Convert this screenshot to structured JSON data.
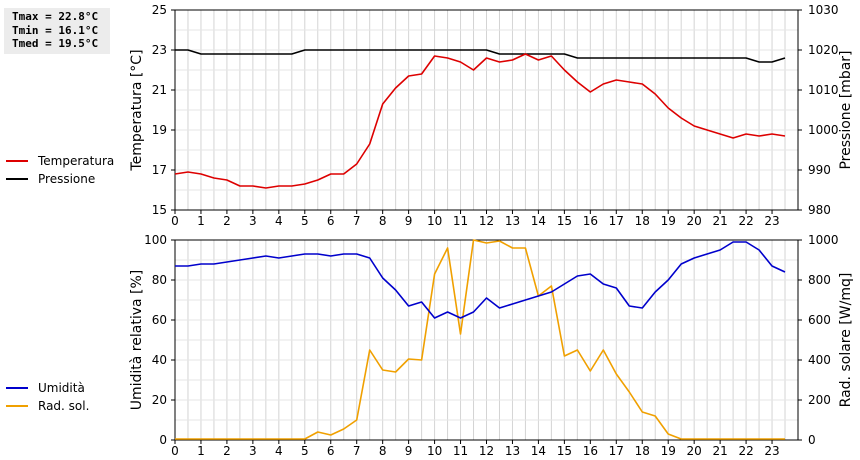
{
  "stats": {
    "tmax": "Tmax = 22.8°C",
    "tmin": "Tmin = 16.1°C",
    "tmed": "Tmed = 19.5°C"
  },
  "legend_top": [
    {
      "label": "Temperatura",
      "color": "#dd0000"
    },
    {
      "label": "Pressione",
      "color": "#000000"
    }
  ],
  "legend_bottom": [
    {
      "label": "Umidità",
      "color": "#0000cc"
    },
    {
      "label": "Rad. sol.",
      "color": "#f0a000"
    }
  ],
  "chart_data": [
    {
      "type": "line",
      "x_ticks": [
        "0",
        "1",
        "2",
        "3",
        "4",
        "5",
        "6",
        "7",
        "8",
        "9",
        "10",
        "11",
        "12",
        "13",
        "14",
        "15",
        "16",
        "17",
        "18",
        "19",
        "20",
        "21",
        "22",
        "23"
      ],
      "xlim": [
        0,
        24
      ],
      "ylabel": "Temperatura [°C]",
      "ylim": [
        15,
        25
      ],
      "y_ticks": [
        15,
        17,
        19,
        21,
        23,
        25
      ],
      "y2label": "Pressione [mbar]",
      "y2lim": [
        980,
        1030
      ],
      "y2_ticks": [
        980,
        990,
        1000,
        1010,
        1020,
        1030
      ],
      "grid": true,
      "series": [
        {
          "name": "Temperatura",
          "color": "#dd0000",
          "axis": "left",
          "x": [
            0,
            0.5,
            1,
            1.5,
            2,
            2.5,
            3,
            3.5,
            4,
            4.5,
            5,
            5.5,
            6,
            6.5,
            7,
            7.5,
            8,
            8.5,
            9,
            9.5,
            10,
            10.5,
            11,
            11.5,
            12,
            12.5,
            13,
            13.5,
            14,
            14.5,
            15,
            15.5,
            16,
            16.5,
            17,
            17.5,
            18,
            18.5,
            19,
            19.5,
            20,
            20.5,
            21,
            21.5,
            22,
            22.5,
            23,
            23.5
          ],
          "values": [
            16.8,
            16.9,
            16.8,
            16.6,
            16.5,
            16.2,
            16.2,
            16.1,
            16.2,
            16.2,
            16.3,
            16.5,
            16.8,
            16.8,
            17.3,
            18.3,
            20.3,
            21.1,
            21.7,
            21.8,
            22.7,
            22.6,
            22.4,
            22.0,
            22.6,
            22.4,
            22.5,
            22.8,
            22.5,
            22.7,
            22.0,
            21.4,
            20.9,
            21.3,
            21.5,
            21.4,
            21.3,
            20.8,
            20.1,
            19.6,
            19.2,
            19.0,
            18.8,
            18.6,
            18.8,
            18.7,
            18.8,
            18.7
          ]
        },
        {
          "name": "Pressione",
          "color": "#000000",
          "axis": "right",
          "x": [
            0,
            0.5,
            1,
            1.5,
            2,
            2.5,
            3,
            3.5,
            4,
            4.5,
            5,
            5.5,
            6,
            6.5,
            7,
            7.5,
            8,
            8.5,
            9,
            9.5,
            10,
            10.5,
            11,
            11.5,
            12,
            12.5,
            13,
            13.5,
            14,
            14.5,
            15,
            15.5,
            16,
            16.5,
            17,
            17.5,
            18,
            18.5,
            19,
            19.5,
            20,
            20.5,
            21,
            21.5,
            22,
            22.5,
            23,
            23.5
          ],
          "values": [
            1020,
            1020,
            1019,
            1019,
            1019,
            1019,
            1019,
            1019,
            1019,
            1019,
            1020,
            1020,
            1020,
            1020,
            1020,
            1020,
            1020,
            1020,
            1020,
            1020,
            1020,
            1020,
            1020,
            1020,
            1020,
            1019,
            1019,
            1019,
            1019,
            1019,
            1019,
            1018,
            1018,
            1018,
            1018,
            1018,
            1018,
            1018,
            1018,
            1018,
            1018,
            1018,
            1018,
            1018,
            1018,
            1017,
            1017,
            1018
          ]
        }
      ]
    },
    {
      "type": "line",
      "x_ticks": [
        "0",
        "1",
        "2",
        "3",
        "4",
        "5",
        "6",
        "7",
        "8",
        "9",
        "10",
        "11",
        "12",
        "13",
        "14",
        "15",
        "16",
        "17",
        "18",
        "19",
        "20",
        "21",
        "22",
        "23"
      ],
      "xlim": [
        0,
        24
      ],
      "ylabel": "Umidità relativa [%]",
      "ylim": [
        0,
        100
      ],
      "y_ticks": [
        0,
        20,
        40,
        60,
        80,
        100
      ],
      "y2label": "Rad. solare [W/mq]",
      "y2lim": [
        0,
        1000
      ],
      "y2_ticks": [
        0,
        200,
        400,
        600,
        800,
        1000
      ],
      "grid": true,
      "series": [
        {
          "name": "Umidità",
          "color": "#0000cc",
          "axis": "left",
          "x": [
            0,
            0.5,
            1,
            1.5,
            2,
            2.5,
            3,
            3.5,
            4,
            4.5,
            5,
            5.5,
            6,
            6.5,
            7,
            7.5,
            8,
            8.5,
            9,
            9.5,
            10,
            10.5,
            11,
            11.5,
            12,
            12.5,
            13,
            13.5,
            14,
            14.5,
            15,
            15.5,
            16,
            16.5,
            17,
            17.5,
            18,
            18.5,
            19,
            19.5,
            20,
            20.5,
            21,
            21.5,
            22,
            22.5,
            23,
            23.5
          ],
          "values": [
            87,
            87,
            88,
            88,
            89,
            90,
            91,
            92,
            91,
            92,
            93,
            93,
            92,
            93,
            93,
            91,
            81,
            75,
            67,
            69,
            61,
            64,
            61,
            64,
            71,
            66,
            68,
            70,
            72,
            74,
            78,
            82,
            83,
            78,
            76,
            67,
            66,
            74,
            80,
            88,
            91,
            93,
            95,
            99,
            99,
            95,
            87,
            84
          ]
        },
        {
          "name": "Rad. sol.",
          "color": "#f0a000",
          "axis": "right",
          "x": [
            0,
            0.5,
            1,
            1.5,
            2,
            2.5,
            3,
            3.5,
            4,
            4.5,
            5,
            5.5,
            6,
            6.5,
            7,
            7.5,
            8,
            8.5,
            9,
            9.5,
            10,
            10.5,
            11,
            11.5,
            12,
            12.5,
            13,
            13.5,
            14,
            14.5,
            15,
            15.5,
            16,
            16.5,
            17,
            17.5,
            18,
            18.5,
            19,
            19.5,
            20,
            20.5,
            21,
            21.5,
            22,
            22.5,
            23,
            23.5
          ],
          "values": [
            0,
            0,
            0,
            0,
            0,
            0,
            0,
            0,
            0,
            0,
            0,
            40,
            25,
            55,
            100,
            450,
            350,
            340,
            405,
            400,
            830,
            960,
            530,
            1010,
            985,
            995,
            960,
            960,
            720,
            770,
            420,
            450,
            345,
            450,
            330,
            240,
            140,
            120,
            30,
            0,
            0,
            0,
            0,
            0,
            0,
            0,
            0,
            0
          ]
        }
      ]
    }
  ]
}
